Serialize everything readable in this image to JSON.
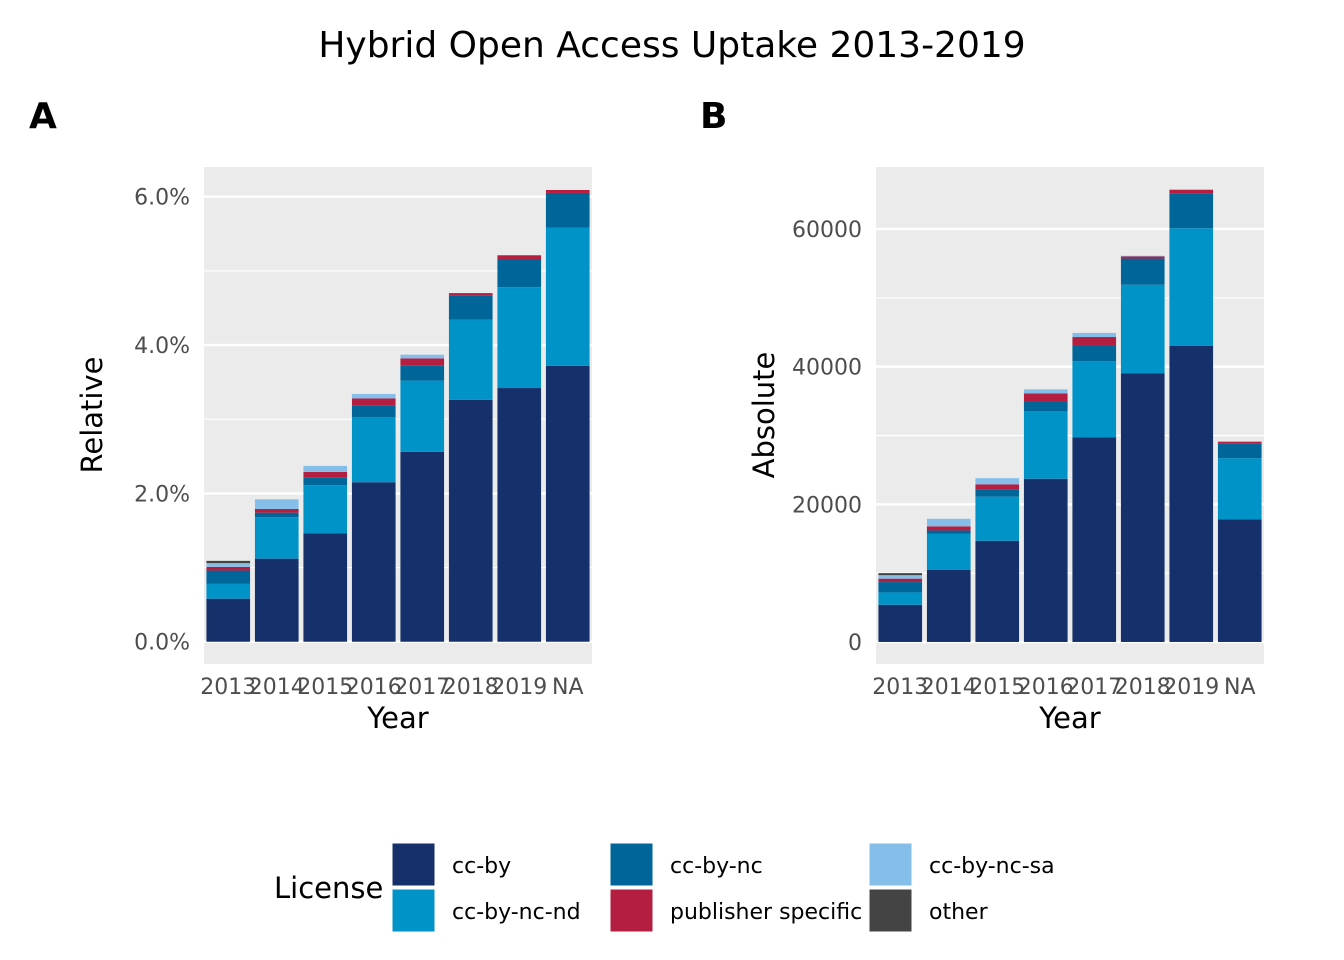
{
  "chart_data": {
    "type": "bar",
    "stacked": true,
    "title": "Hybrid Open Access Uptake 2013-2019",
    "categories": [
      "2013",
      "2014",
      "2015",
      "2016",
      "2017",
      "2018",
      "2019",
      "NA"
    ],
    "legend": {
      "title": "License",
      "position": "bottom",
      "items": [
        {
          "name": "cc-by",
          "color": "#15306a"
        },
        {
          "name": "cc-by-nc",
          "color": "#006699"
        },
        {
          "name": "cc-by-nc-sa",
          "color": "#85bfe9"
        },
        {
          "name": "cc-by-nc-nd",
          "color": "#0093c8"
        },
        {
          "name": "publisher specific",
          "color": "#b41f41"
        },
        {
          "name": "other",
          "color": "#444444"
        }
      ]
    },
    "panels": [
      {
        "label": "A",
        "xlabel": "Year",
        "ylabel": "Relative",
        "ylim": [
          -0.3,
          6.4
        ],
        "yticks": [
          0,
          2,
          4,
          6
        ],
        "ytick_labels": [
          "0.0%",
          "2.0%",
          "4.0%",
          "6.0%"
        ],
        "series": [
          {
            "name": "cc-by",
            "color": "#15306a",
            "values": [
              0.58,
              1.12,
              1.46,
              2.15,
              2.56,
              3.26,
              3.42,
              3.72
            ]
          },
          {
            "name": "cc-by-nc-nd",
            "color": "#0093c8",
            "values": [
              0.2,
              0.56,
              0.65,
              0.88,
              0.96,
              1.08,
              1.36,
              1.86
            ]
          },
          {
            "name": "cc-by-nc",
            "color": "#006699",
            "values": [
              0.18,
              0.06,
              0.1,
              0.15,
              0.2,
              0.33,
              0.38,
              0.47
            ]
          },
          {
            "name": "publisher specific",
            "color": "#b41f41",
            "values": [
              0.05,
              0.05,
              0.08,
              0.1,
              0.1,
              0.03,
              0.05,
              0.04
            ]
          },
          {
            "name": "cc-by-nc-sa",
            "color": "#85bfe9",
            "values": [
              0.05,
              0.13,
              0.08,
              0.06,
              0.05,
              0.0,
              0.0,
              0.0
            ]
          },
          {
            "name": "other",
            "color": "#444444",
            "values": [
              0.03,
              0.0,
              0.0,
              0.0,
              0.0,
              0.0,
              0.0,
              0.0
            ]
          }
        ]
      },
      {
        "label": "B",
        "xlabel": "Year",
        "ylabel": "Absolute",
        "ylim": [
          -3200,
          69000
        ],
        "yticks": [
          0,
          20000,
          40000,
          60000
        ],
        "ytick_labels": [
          "0",
          "20000",
          "40000",
          "60000"
        ],
        "series": [
          {
            "name": "cc-by",
            "color": "#15306a",
            "values": [
              5400,
              10500,
              14700,
              23700,
              29700,
              39000,
              43000,
              17800
            ]
          },
          {
            "name": "cc-by-nc-nd",
            "color": "#0093c8",
            "values": [
              1800,
              5200,
              6400,
              9800,
              11100,
              12900,
              17100,
              8900
            ]
          },
          {
            "name": "cc-by-nc",
            "color": "#006699",
            "values": [
              1500,
              500,
              1000,
              1500,
              2200,
              3800,
              5000,
              2100
            ]
          },
          {
            "name": "publisher specific",
            "color": "#b41f41",
            "values": [
              500,
              600,
              800,
              1100,
              1300,
              300,
              600,
              300
            ]
          },
          {
            "name": "cc-by-nc-sa",
            "color": "#85bfe9",
            "values": [
              500,
              1100,
              900,
              600,
              600,
              100,
              0,
              0
            ]
          },
          {
            "name": "other",
            "color": "#444444",
            "values": [
              300,
              0,
              0,
              0,
              0,
              0,
              0,
              0
            ]
          }
        ]
      }
    ]
  }
}
